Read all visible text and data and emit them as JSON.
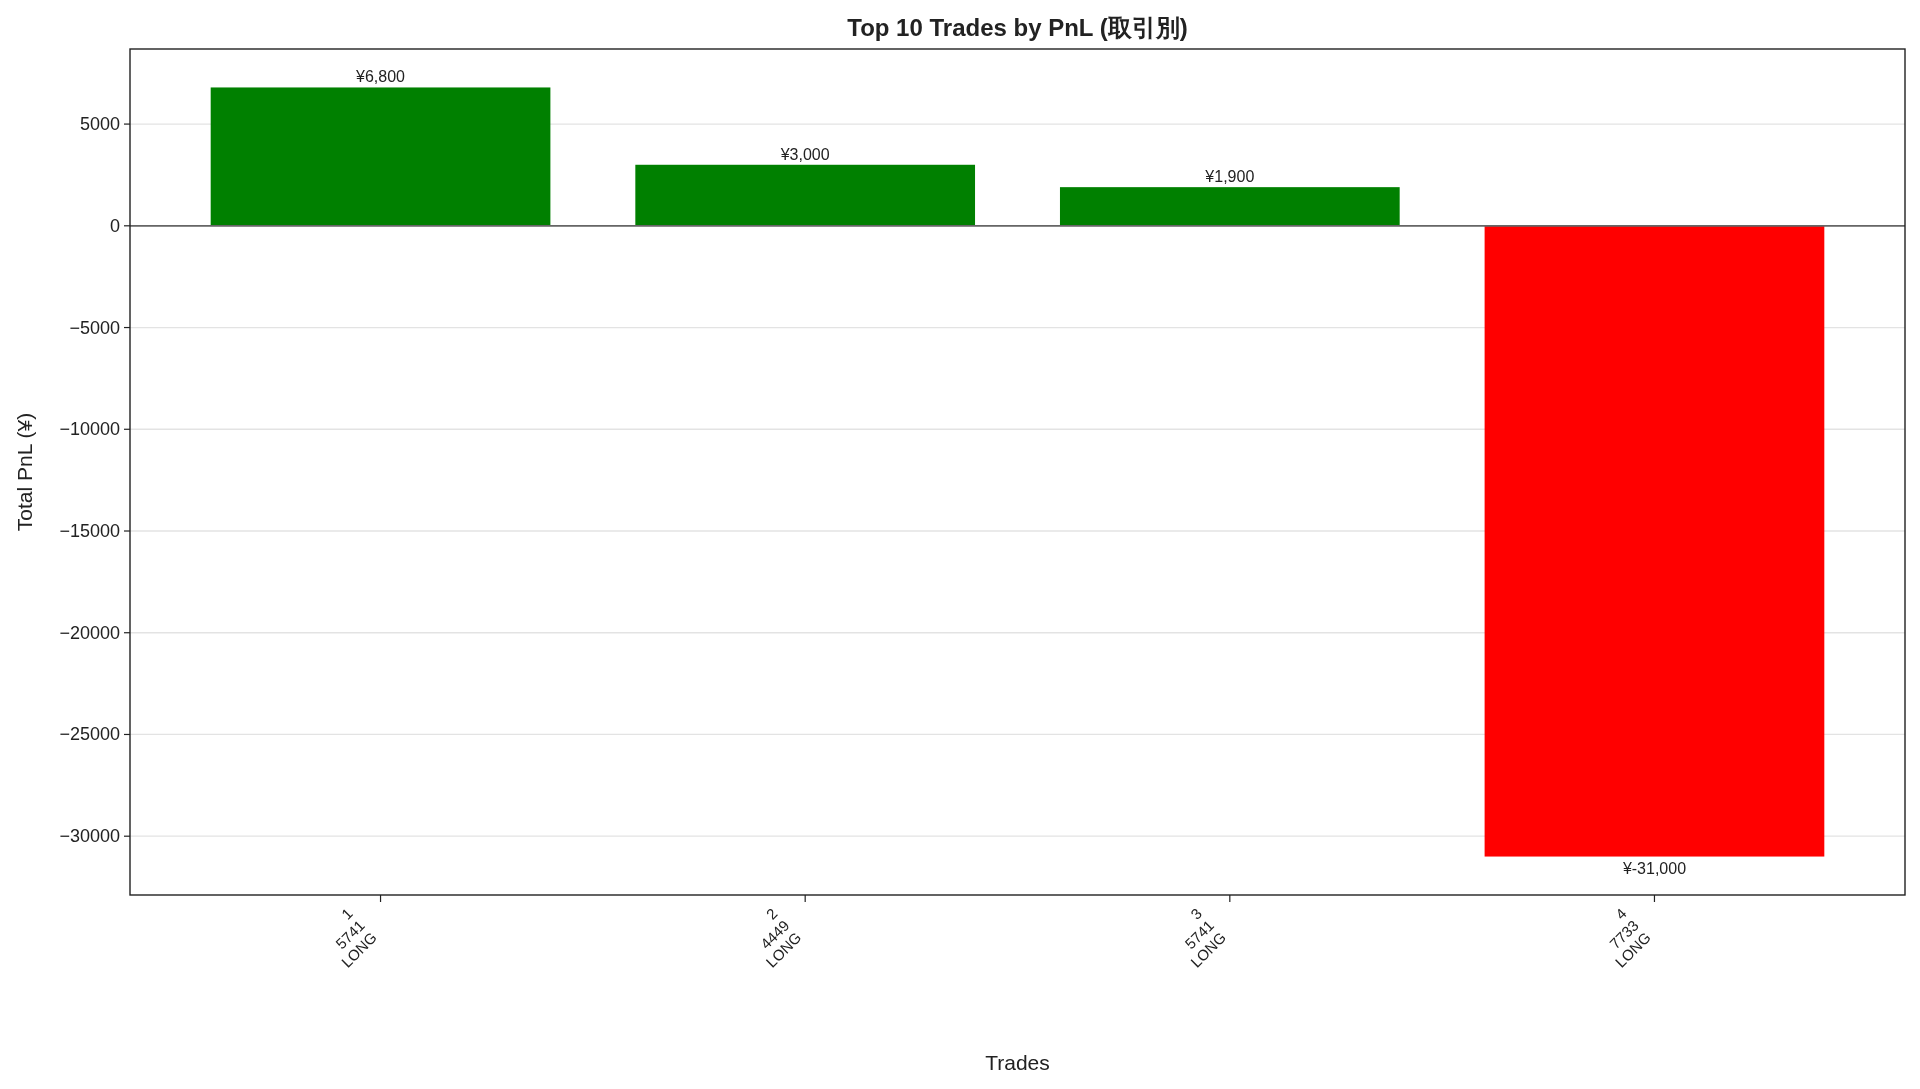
{
  "chart_data": {
    "type": "bar",
    "title": "Top 10 Trades by PnL (取引別)",
    "xlabel": "Trades",
    "ylabel": "Total PnL (¥)",
    "categories": [
      "1\n5741\nLONG",
      "2\n4449\nLONG",
      "3\n5741\nLONG",
      "4\n7733\nLONG"
    ],
    "values": [
      6800,
      3000,
      1900,
      -31000
    ],
    "colors": [
      "#008000",
      "#008000",
      "#008000",
      "#ff0000"
    ],
    "value_labels": [
      "¥6,800",
      "¥3,000",
      "¥1,900",
      "¥-31,000"
    ],
    "ylim": [
      -32890,
      8690
    ],
    "yticks": [
      {
        "value": -30000,
        "label": "−30000"
      },
      {
        "value": -25000,
        "label": "−25000"
      },
      {
        "value": -20000,
        "label": "−20000"
      },
      {
        "value": -15000,
        "label": "−15000"
      },
      {
        "value": -10000,
        "label": "−10000"
      },
      {
        "value": -5000,
        "label": "−5000"
      },
      0,
      5000
    ],
    "grid": "y",
    "ref_lines": [
      {
        "axis": "y",
        "value": 0,
        "color": "#666666"
      }
    ]
  }
}
